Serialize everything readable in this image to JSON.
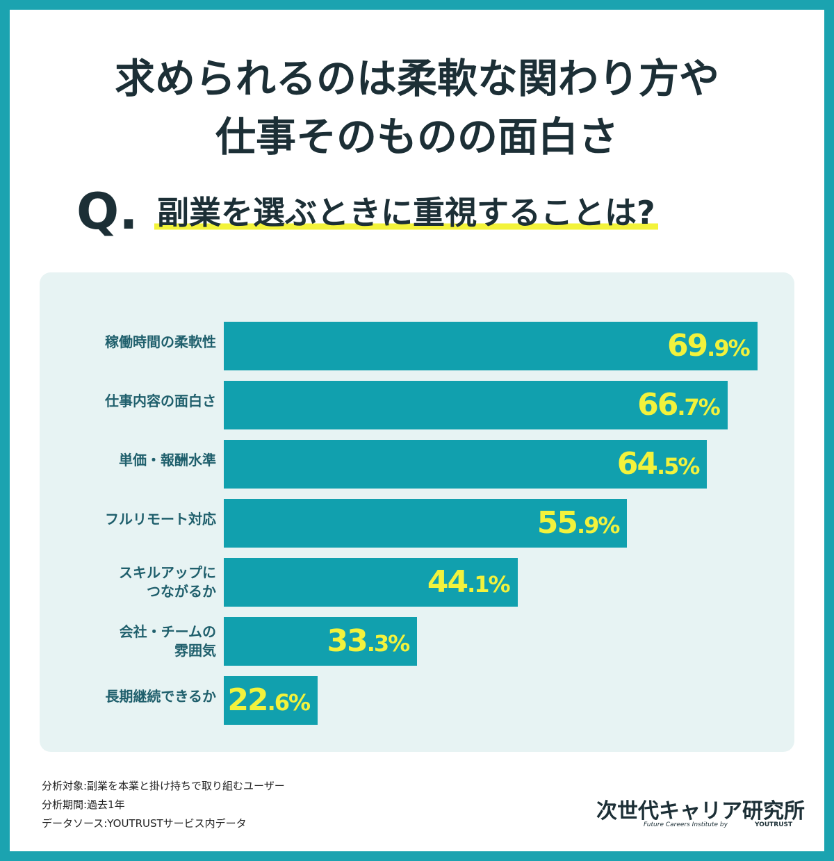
{
  "chart_data": {
    "type": "bar",
    "orientation": "horizontal",
    "title_lines": [
      "求められるのは柔軟な関わり方や",
      "仕事そのものの面白さ"
    ],
    "question_mark": "Q.",
    "question": "副業を選ぶときに重視することは?",
    "categories": [
      "稼働時間の柔軟性",
      "仕事内容の面白さ",
      "単価・報酬水準",
      "フルリモート対応",
      "スキルアップに\nつながるか",
      "会社・チームの\n雰囲気",
      "長期継続できるか"
    ],
    "values": [
      69.9,
      66.7,
      64.5,
      55.9,
      44.1,
      33.3,
      22.6
    ],
    "value_labels": [
      "69.9%",
      "66.7%",
      "64.5%",
      "55.9%",
      "44.1%",
      "33.3%",
      "22.6%"
    ],
    "color": "#11a0ae",
    "label_color": "#f2f23c",
    "xlim": [
      12.5,
      70
    ],
    "notes": [
      "分析対象:副業を本業と掛け持ちで取り組むユーザー",
      "分析期間:過去1年",
      "データソース:YOUTRUSTサービス内データ"
    ],
    "logo": {
      "name": "次世代キャリア研究所",
      "tagline": "Future Careers Institute by",
      "brand": "YOUTRUST"
    }
  }
}
